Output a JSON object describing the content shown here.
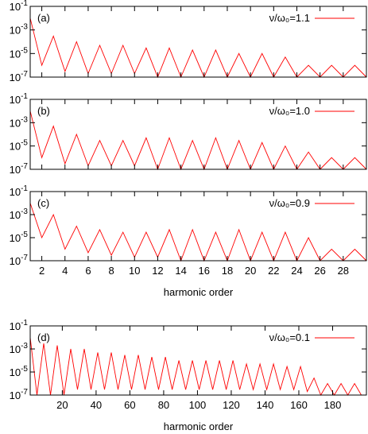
{
  "chart_data": [
    {
      "type": "line",
      "annotation": "(a)",
      "log_y": true,
      "xtick_labels": false,
      "xlim": [
        1,
        30
      ],
      "xticks": [
        2,
        4,
        6,
        8,
        10,
        12,
        14,
        16,
        18,
        20,
        22,
        24,
        26,
        28
      ],
      "ylim": [
        1e-07,
        0.1
      ],
      "yticks": [
        {
          "value": 1e-07,
          "label": "10",
          "superscript": "-7"
        },
        {
          "value": 1e-05,
          "label": "10",
          "superscript": "-5"
        },
        {
          "value": 0.001,
          "label": "10",
          "superscript": "-3"
        },
        {
          "value": 0.1,
          "label": "10",
          "superscript": "-1"
        }
      ],
      "series": [
        {
          "name": "ν/ω₀=1.1",
          "color": "#ff0000",
          "x": [
            1,
            2,
            3,
            4,
            5,
            6,
            7,
            8,
            9,
            10,
            11,
            12,
            13,
            14,
            15,
            16,
            17,
            18,
            19,
            20,
            21,
            22,
            23,
            24,
            25,
            26,
            27,
            28,
            29,
            30
          ],
          "values": [
            0.01,
            1e-06,
            0.0003,
            3e-07,
            0.0001,
            2e-07,
            5e-05,
            2e-07,
            5e-05,
            2e-07,
            3e-05,
            1e-07,
            3e-05,
            1e-07,
            2e-05,
            1e-07,
            2e-05,
            1e-07,
            1e-05,
            1e-07,
            1e-05,
            1e-07,
            5e-06,
            1e-07,
            1e-06,
            1e-07,
            1e-06,
            1e-07,
            1e-06,
            1e-07
          ]
        }
      ]
    },
    {
      "type": "line",
      "annotation": "(b)",
      "log_y": true,
      "xtick_labels": false,
      "xlim": [
        1,
        30
      ],
      "xticks": [
        2,
        4,
        6,
        8,
        10,
        12,
        14,
        16,
        18,
        20,
        22,
        24,
        26,
        28
      ],
      "ylim": [
        1e-07,
        0.1
      ],
      "yticks": [
        {
          "value": 1e-07,
          "label": "10",
          "superscript": "-7"
        },
        {
          "value": 1e-05,
          "label": "10",
          "superscript": "-5"
        },
        {
          "value": 0.001,
          "label": "10",
          "superscript": "-3"
        },
        {
          "value": 0.1,
          "label": "10",
          "superscript": "-1"
        }
      ],
      "series": [
        {
          "name": "ν/ω₀=1.0",
          "color": "#ff0000",
          "x": [
            1,
            2,
            3,
            4,
            5,
            6,
            7,
            8,
            9,
            10,
            11,
            12,
            13,
            14,
            15,
            16,
            17,
            18,
            19,
            20,
            21,
            22,
            23,
            24,
            25,
            26,
            27,
            28,
            29,
            30
          ],
          "values": [
            0.01,
            1e-06,
            0.0005,
            3e-07,
            0.0001,
            2e-07,
            3e-05,
            2e-07,
            3e-05,
            2e-07,
            5e-05,
            1e-07,
            5e-05,
            1e-07,
            3e-05,
            1e-07,
            5e-05,
            1e-07,
            3e-05,
            1e-07,
            2e-05,
            1e-07,
            1e-05,
            1e-07,
            3e-06,
            1e-07,
            1e-06,
            1e-07,
            1e-06,
            1e-07
          ]
        }
      ]
    },
    {
      "type": "line",
      "annotation": "(c)",
      "log_y": true,
      "xtick_labels": true,
      "xlabel": "harmonic order",
      "xlim": [
        1,
        30
      ],
      "xticks": [
        2,
        4,
        6,
        8,
        10,
        12,
        14,
        16,
        18,
        20,
        22,
        24,
        26,
        28
      ],
      "ylim": [
        1e-07,
        0.1
      ],
      "yticks": [
        {
          "value": 1e-07,
          "label": "10",
          "superscript": "-7"
        },
        {
          "value": 1e-05,
          "label": "10",
          "superscript": "-5"
        },
        {
          "value": 0.001,
          "label": "10",
          "superscript": "-3"
        },
        {
          "value": 0.1,
          "label": "10",
          "superscript": "-1"
        }
      ],
      "series": [
        {
          "name": "ν/ω₀=0.9",
          "color": "#ff0000",
          "x": [
            1,
            2,
            3,
            4,
            5,
            6,
            7,
            8,
            9,
            10,
            11,
            12,
            13,
            14,
            15,
            16,
            17,
            18,
            19,
            20,
            21,
            22,
            23,
            24,
            25,
            26,
            27,
            28,
            29,
            30
          ],
          "values": [
            0.01,
            1e-05,
            0.001,
            1e-06,
            0.0001,
            5e-07,
            5e-05,
            3e-07,
            3e-05,
            2e-07,
            3e-05,
            2e-07,
            5e-05,
            1e-07,
            5e-05,
            1e-07,
            3e-05,
            1e-07,
            5e-05,
            1e-07,
            3e-05,
            1e-07,
            3e-05,
            1e-07,
            1e-05,
            1e-07,
            1e-06,
            1e-07,
            1e-06,
            1e-07
          ]
        }
      ]
    },
    {
      "type": "line",
      "annotation": "(d)",
      "log_y": true,
      "xtick_labels": true,
      "xlabel": "harmonic order",
      "xlim": [
        1,
        200
      ],
      "xticks": [
        20,
        40,
        60,
        80,
        100,
        120,
        140,
        160,
        180
      ],
      "ylim": [
        1e-07,
        0.1
      ],
      "yticks": [
        {
          "value": 1e-07,
          "label": "10",
          "superscript": "-7"
        },
        {
          "value": 1e-05,
          "label": "10",
          "superscript": "-5"
        },
        {
          "value": 0.001,
          "label": "10",
          "superscript": "-3"
        },
        {
          "value": 0.1,
          "label": "10",
          "superscript": "-1"
        }
      ],
      "series": [
        {
          "name": "ν/ω₀=0.1",
          "color": "#ff0000",
          "x": [
            1,
            5,
            9,
            13,
            17,
            21,
            25,
            29,
            33,
            37,
            41,
            45,
            49,
            53,
            57,
            61,
            65,
            69,
            73,
            77,
            81,
            85,
            89,
            93,
            97,
            101,
            105,
            109,
            113,
            117,
            121,
            125,
            129,
            133,
            137,
            141,
            145,
            149,
            153,
            157,
            161,
            165,
            169,
            173,
            177,
            181,
            185,
            189,
            193,
            197
          ],
          "values": [
            0.01,
            1e-07,
            0.003,
            1e-07,
            0.002,
            1e-07,
            0.001,
            3e-07,
            0.001,
            3e-07,
            0.0005,
            3e-07,
            0.0005,
            3e-07,
            0.0003,
            3e-07,
            0.0003,
            3e-07,
            0.0002,
            3e-07,
            0.0002,
            3e-07,
            0.0001,
            3e-07,
            0.0001,
            3e-07,
            0.0001,
            3e-07,
            0.0001,
            3e-07,
            0.0001,
            3e-07,
            5e-05,
            3e-07,
            5e-05,
            3e-07,
            5e-05,
            3e-07,
            3e-05,
            3e-07,
            3e-05,
            2e-07,
            3e-06,
            1e-07,
            1e-06,
            1e-07,
            1e-06,
            1e-07,
            1e-06,
            1e-07
          ]
        }
      ]
    }
  ]
}
